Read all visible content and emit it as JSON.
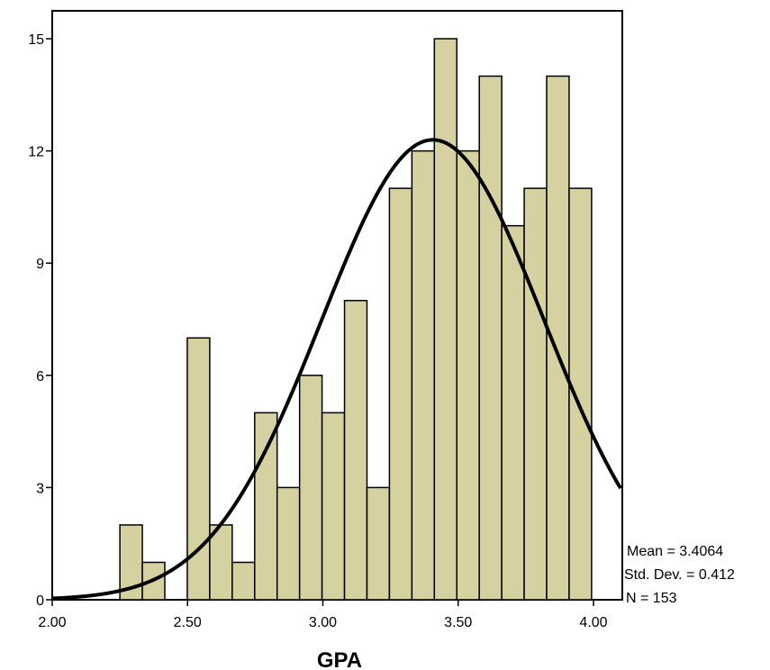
{
  "chart_data": {
    "type": "bar",
    "subtype": "histogram-with-normal-curve",
    "title": "",
    "xlabel": "GPA",
    "ylabel": "",
    "xlim": [
      2.0,
      4.1
    ],
    "ylim": [
      0,
      16
    ],
    "bin_width": 0.083,
    "x_ticks": [
      2.0,
      2.5,
      3.0,
      3.5,
      4.0
    ],
    "x_tick_labels": [
      "2.00",
      "2.50",
      "3.00",
      "3.50",
      "4.00"
    ],
    "y_ticks": [
      0,
      3,
      6,
      9,
      12,
      15
    ],
    "y_tick_labels": [
      "0",
      "3",
      "6",
      "9",
      "12",
      "15"
    ],
    "bins": [
      {
        "start": 2.25,
        "end": 2.333,
        "count": 2
      },
      {
        "start": 2.333,
        "end": 2.416,
        "count": 1
      },
      {
        "start": 2.416,
        "end": 2.499,
        "count": 0
      },
      {
        "start": 2.499,
        "end": 2.582,
        "count": 7
      },
      {
        "start": 2.582,
        "end": 2.665,
        "count": 2
      },
      {
        "start": 2.665,
        "end": 2.748,
        "count": 1
      },
      {
        "start": 2.748,
        "end": 2.831,
        "count": 5
      },
      {
        "start": 2.831,
        "end": 2.914,
        "count": 3
      },
      {
        "start": 2.914,
        "end": 2.997,
        "count": 6
      },
      {
        "start": 2.997,
        "end": 3.08,
        "count": 5
      },
      {
        "start": 3.08,
        "end": 3.163,
        "count": 8
      },
      {
        "start": 3.163,
        "end": 3.246,
        "count": 3
      },
      {
        "start": 3.246,
        "end": 3.329,
        "count": 11
      },
      {
        "start": 3.329,
        "end": 3.412,
        "count": 12
      },
      {
        "start": 3.412,
        "end": 3.495,
        "count": 15
      },
      {
        "start": 3.495,
        "end": 3.578,
        "count": 12
      },
      {
        "start": 3.578,
        "end": 3.661,
        "count": 14
      },
      {
        "start": 3.661,
        "end": 3.744,
        "count": 10
      },
      {
        "start": 3.744,
        "end": 3.827,
        "count": 11
      },
      {
        "start": 3.827,
        "end": 3.91,
        "count": 14
      },
      {
        "start": 3.91,
        "end": 3.993,
        "count": 11
      }
    ],
    "normal_curve": {
      "mean": 3.4064,
      "std": 0.412,
      "n": 153
    },
    "stats_text": {
      "mean": "Mean = 3.4064",
      "std": "Std. Dev. = 0.412",
      "n": "N = 153"
    },
    "colors": {
      "bar_fill": "#d6d1a1",
      "bar_stroke": "#000000",
      "curve": "#000000",
      "axis": "#000000"
    },
    "grid": false,
    "legend": "none"
  }
}
